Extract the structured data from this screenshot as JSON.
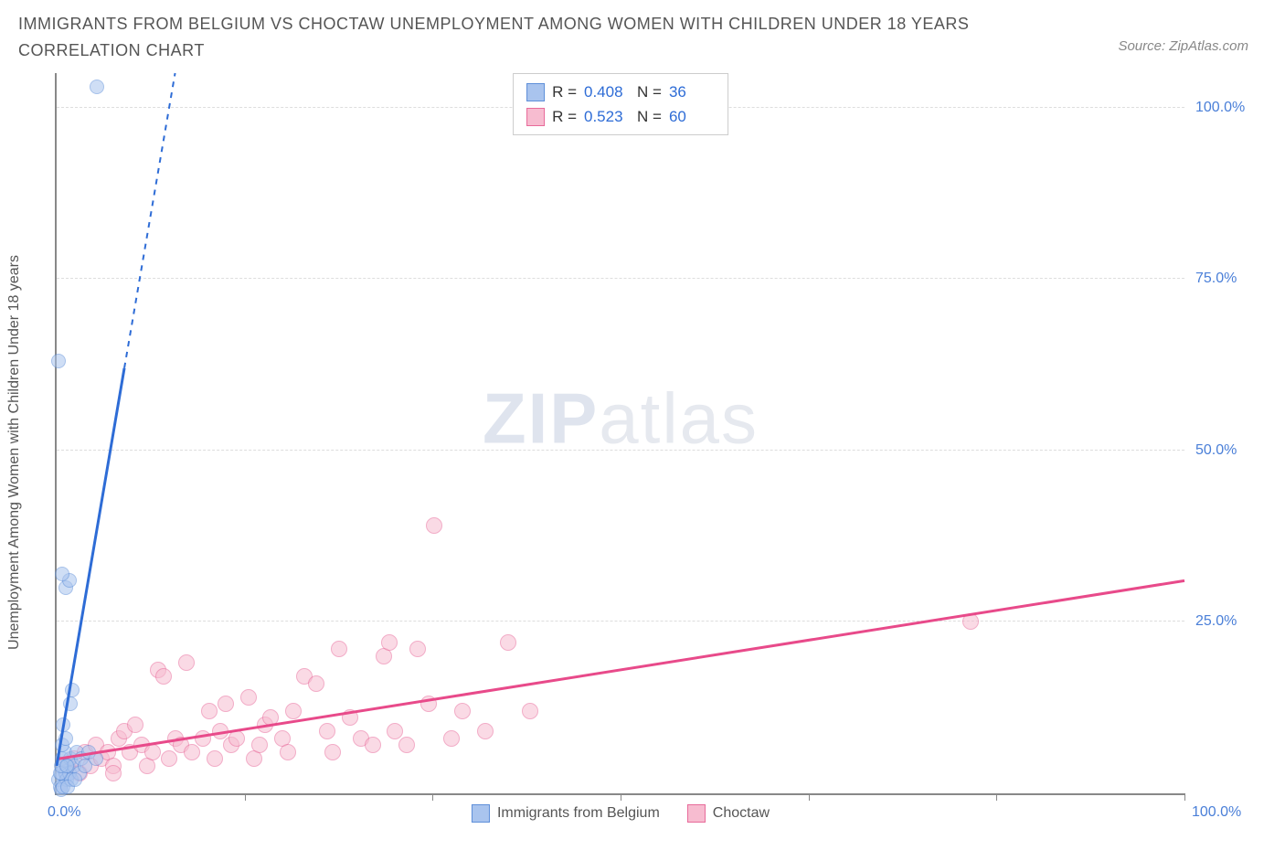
{
  "title": "IMMIGRANTS FROM BELGIUM VS CHOCTAW UNEMPLOYMENT AMONG WOMEN WITH CHILDREN UNDER 18 YEARS CORRELATION CHART",
  "source": "Source: ZipAtlas.com",
  "ylabel": "Unemployment Among Women with Children Under 18 years",
  "watermark_bold": "ZIP",
  "watermark_light": "atlas",
  "chart": {
    "type": "scatter",
    "xlim": [
      0,
      100
    ],
    "ylim": [
      0,
      105
    ],
    "x_tick_positions": [
      0,
      16.7,
      33.3,
      50,
      66.7,
      83.3,
      100
    ],
    "x_axis_label_left": "0.0%",
    "x_axis_label_right": "100.0%",
    "y_ticks": [
      {
        "pos": 25,
        "label": "25.0%"
      },
      {
        "pos": 50,
        "label": "50.0%"
      },
      {
        "pos": 75,
        "label": "75.0%"
      },
      {
        "pos": 100,
        "label": "100.0%"
      }
    ],
    "grid_color": "#dddddd",
    "background_color": "#ffffff",
    "axis_color": "#888888",
    "tick_label_color": "#4a7fd8"
  },
  "series": {
    "blue": {
      "name": "Immigrants from Belgium",
      "R": "0.408",
      "N": "36",
      "fill": "#a9c4ee",
      "stroke": "#5e8fd9",
      "fill_opacity": 0.55,
      "marker_radius": 8,
      "line_color": "#2e6cd6",
      "line_width": 3,
      "dash_segment_x": 11,
      "trend": {
        "x1": 0,
        "y1": 4,
        "x2": 6,
        "y2": 62
      },
      "trend_dash": {
        "x1": 6,
        "y1": 62,
        "x2": 10.5,
        "y2": 105
      },
      "points": [
        [
          0.2,
          2
        ],
        [
          0.4,
          3
        ],
        [
          0.6,
          4
        ],
        [
          0.5,
          5
        ],
        [
          0.3,
          1
        ],
        [
          0.8,
          3
        ],
        [
          1.0,
          4
        ],
        [
          1.2,
          5
        ],
        [
          0.7,
          6
        ],
        [
          0.9,
          2
        ],
        [
          0.4,
          0.5
        ],
        [
          0.6,
          1
        ],
        [
          1.1,
          3
        ],
        [
          1.3,
          2
        ],
        [
          0.5,
          7
        ],
        [
          0.8,
          8
        ],
        [
          1.0,
          1
        ],
        [
          1.5,
          4
        ],
        [
          1.8,
          6
        ],
        [
          2.0,
          3
        ],
        [
          2.2,
          5
        ],
        [
          2.5,
          4
        ],
        [
          0.6,
          10
        ],
        [
          2.8,
          6
        ],
        [
          0.3,
          3
        ],
        [
          3.5,
          5
        ],
        [
          0.4,
          4
        ],
        [
          1.2,
          13
        ],
        [
          1.4,
          15
        ],
        [
          0.8,
          30
        ],
        [
          1.1,
          31
        ],
        [
          0.5,
          32
        ],
        [
          0.2,
          63
        ],
        [
          3.6,
          103
        ],
        [
          0.9,
          4
        ],
        [
          1.6,
          2
        ]
      ]
    },
    "pink": {
      "name": "Choctaw",
      "R": "0.523",
      "N": "60",
      "fill": "#f7bcd0",
      "stroke": "#e86a9a",
      "fill_opacity": 0.55,
      "marker_radius": 9,
      "line_color": "#e84a8a",
      "line_width": 3,
      "trend": {
        "x1": 0,
        "y1": 5,
        "x2": 100,
        "y2": 31
      },
      "points": [
        [
          1,
          4
        ],
        [
          1.5,
          5
        ],
        [
          2,
          3
        ],
        [
          2.5,
          6
        ],
        [
          3,
          4
        ],
        [
          3.5,
          7
        ],
        [
          4,
          5
        ],
        [
          4.5,
          6
        ],
        [
          5,
          4
        ],
        [
          5.5,
          8
        ],
        [
          6,
          9
        ],
        [
          6.5,
          6
        ],
        [
          7,
          10
        ],
        [
          7.5,
          7
        ],
        [
          8,
          4
        ],
        [
          8.5,
          6
        ],
        [
          9,
          18
        ],
        [
          9.5,
          17
        ],
        [
          10,
          5
        ],
        [
          10.5,
          8
        ],
        [
          11,
          7
        ],
        [
          11.5,
          19
        ],
        [
          12,
          6
        ],
        [
          13,
          8
        ],
        [
          13.5,
          12
        ],
        [
          14,
          5
        ],
        [
          14.5,
          9
        ],
        [
          15,
          13
        ],
        [
          15.5,
          7
        ],
        [
          16,
          8
        ],
        [
          17,
          14
        ],
        [
          17.5,
          5
        ],
        [
          18,
          7
        ],
        [
          18.5,
          10
        ],
        [
          19,
          11
        ],
        [
          20,
          8
        ],
        [
          20.5,
          6
        ],
        [
          21,
          12
        ],
        [
          22,
          17
        ],
        [
          23,
          16
        ],
        [
          24,
          9
        ],
        [
          24.5,
          6
        ],
        [
          25,
          21
        ],
        [
          26,
          11
        ],
        [
          27,
          8
        ],
        [
          28,
          7
        ],
        [
          29,
          20
        ],
        [
          29.5,
          22
        ],
        [
          30,
          9
        ],
        [
          31,
          7
        ],
        [
          32,
          21
        ],
        [
          33,
          13
        ],
        [
          33.5,
          39
        ],
        [
          35,
          8
        ],
        [
          36,
          12
        ],
        [
          38,
          9
        ],
        [
          40,
          22
        ],
        [
          42,
          12
        ],
        [
          81,
          25
        ],
        [
          5,
          3
        ]
      ]
    }
  },
  "legend_bottom": [
    {
      "key": "blue"
    },
    {
      "key": "pink"
    }
  ]
}
